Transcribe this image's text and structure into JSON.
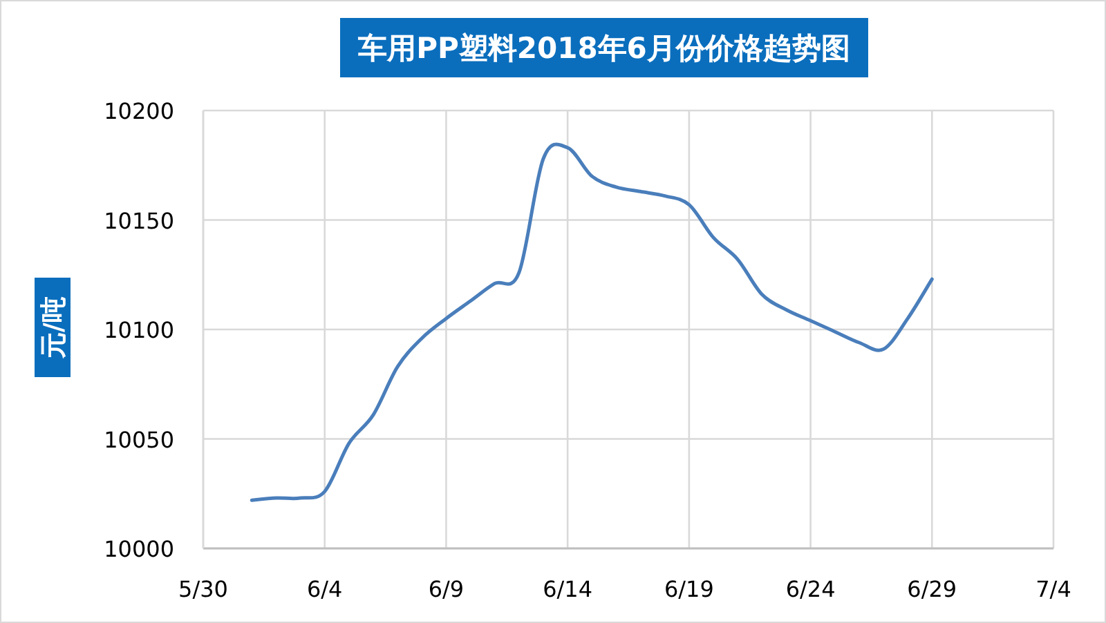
{
  "chart_data": {
    "type": "line",
    "title": "车用PP塑料2018年6月份价格趋势图",
    "ylabel": "元/吨",
    "x": [
      "2018-06-01",
      "2018-06-02",
      "2018-06-03",
      "2018-06-04",
      "2018-06-05",
      "2018-06-06",
      "2018-06-07",
      "2018-06-08",
      "2018-06-09",
      "2018-06-10",
      "2018-06-11",
      "2018-06-12",
      "2018-06-13",
      "2018-06-14",
      "2018-06-15",
      "2018-06-16",
      "2018-06-17",
      "2018-06-18",
      "2018-06-19",
      "2018-06-20",
      "2018-06-21",
      "2018-06-22",
      "2018-06-23",
      "2018-06-24",
      "2018-06-25",
      "2018-06-26",
      "2018-06-27",
      "2018-06-28",
      "2018-06-29"
    ],
    "series": [
      {
        "color": "#4a7ebb",
        "values": [
          10022,
          10023,
          10023,
          10026,
          10048,
          10061,
          10083,
          10096,
          10105,
          10113,
          10121,
          10126,
          10178,
          10183,
          10170,
          10165,
          10163,
          10161,
          10157,
          10142,
          10132,
          10116,
          10109,
          10104,
          10099,
          10094,
          10091,
          10105,
          10123
        ]
      }
    ],
    "xlim": [
      "2018-05-30",
      "2018-07-04"
    ],
    "xticks": [
      {
        "value": "2018-05-30",
        "label": "5/30"
      },
      {
        "value": "2018-06-04",
        "label": "6/4"
      },
      {
        "value": "2018-06-09",
        "label": "6/9"
      },
      {
        "value": "2018-06-14",
        "label": "6/14"
      },
      {
        "value": "2018-06-19",
        "label": "6/19"
      },
      {
        "value": "2018-06-24",
        "label": "6/24"
      },
      {
        "value": "2018-06-29",
        "label": "6/29"
      },
      {
        "value": "2018-07-04",
        "label": "7/4"
      }
    ],
    "ylim": [
      10000,
      10200
    ],
    "yticks": [
      10000,
      10050,
      10100,
      10150,
      10200
    ],
    "grid": true,
    "marker": "none",
    "line_style": "solid"
  }
}
